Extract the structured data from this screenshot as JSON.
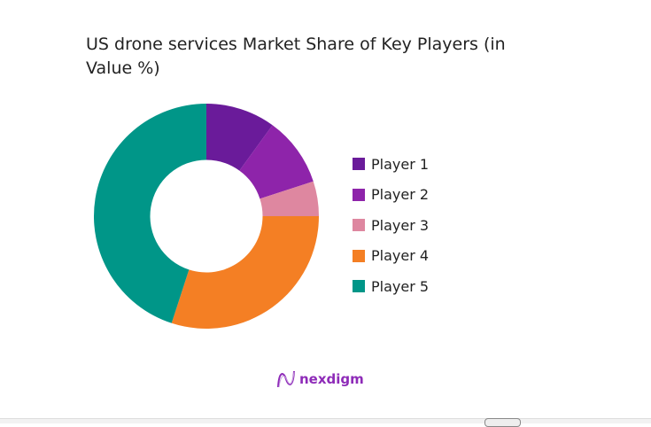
{
  "chart_data": {
    "type": "pie",
    "title": "US drone services Market Share of Key Players (in Value %)",
    "donut": true,
    "legend_position": "right",
    "categories": [
      "Player 1",
      "Player 2",
      "Player 3",
      "Player 4",
      "Player 5"
    ],
    "values": [
      10,
      10,
      5,
      30,
      45
    ],
    "colors": [
      "#6a1b9a",
      "#8e24aa",
      "#de87a0",
      "#f47f24",
      "#009688"
    ]
  },
  "logo": {
    "text": "nexdigm"
  }
}
